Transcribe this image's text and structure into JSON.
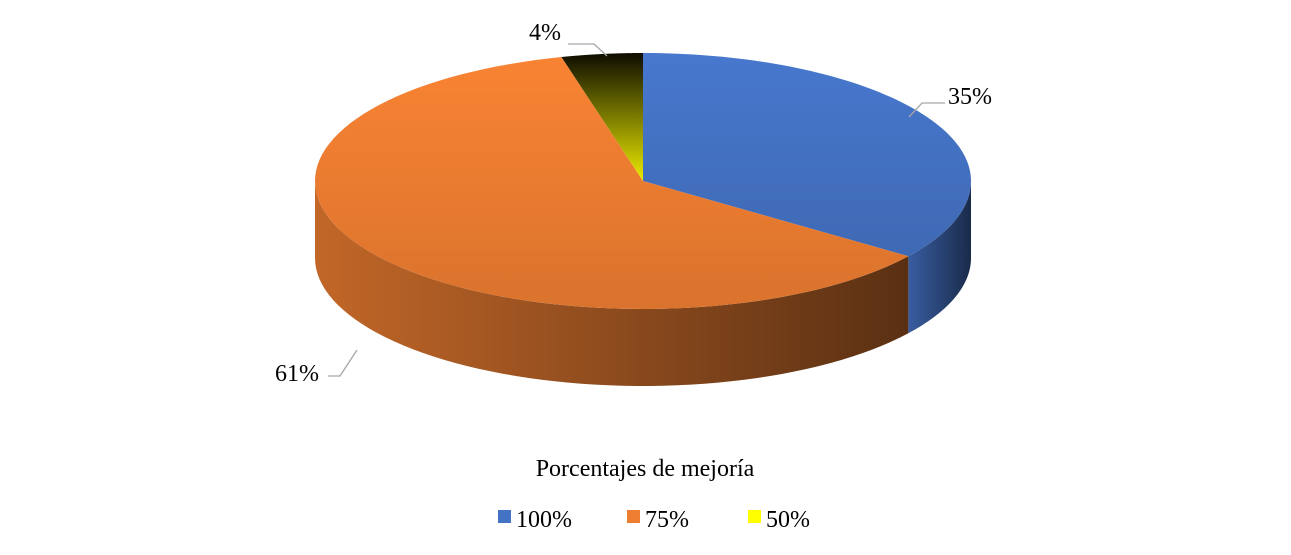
{
  "chart_data": {
    "type": "pie",
    "style": "3d",
    "categories": [
      "100%",
      "75%",
      "50%"
    ],
    "values": [
      35,
      61,
      4
    ],
    "data_labels": [
      "35%",
      "61%",
      "4%"
    ],
    "category_axis_title": "Porcentajes de mejoría",
    "legend": {
      "position": "bottom",
      "entries": [
        "100%",
        "75%",
        "50%"
      ]
    },
    "colors": [
      "#4472C4",
      "#ED7D31",
      "#FFFF00"
    ]
  }
}
